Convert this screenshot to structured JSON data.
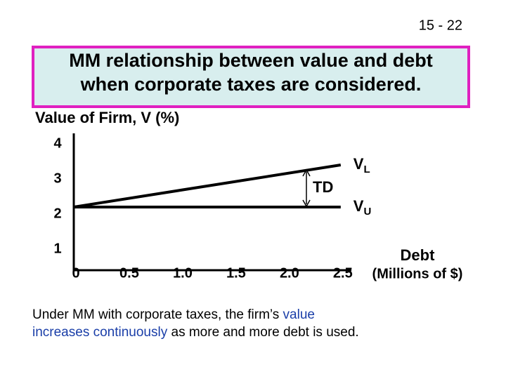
{
  "slide_number": "15 - 22",
  "title": [
    "MM relationship between value and debt",
    "when corporate taxes are considered."
  ],
  "caption": {
    "line1": [
      "Under MM with corporate taxes, the firm’s ",
      "value"
    ],
    "line2": [
      "increases continuously",
      " as more and more debt is used."
    ]
  },
  "chart_data": {
    "type": "line",
    "y_label": "Value of Firm, V (%)",
    "x_label": [
      "Debt",
      "(Millions of $)"
    ],
    "x": [
      0,
      2.5
    ],
    "series": [
      {
        "name": "VL",
        "color": "#000000",
        "values": [
          2.2,
          3.4
        ]
      },
      {
        "name": "VU",
        "color": "#000000",
        "values": [
          2.2,
          2.2
        ]
      }
    ],
    "annotation": "TD",
    "xlim": [
      0,
      2.6
    ],
    "ylim": [
      0.4,
      4.3
    ],
    "xticks": [
      0,
      0.5,
      {
        "value": 1,
        "label": "1.0"
      },
      1.5,
      {
        "value": 2,
        "label": "2.0"
      },
      2.5
    ],
    "yticks": [
      1,
      2,
      3,
      4
    ]
  }
}
